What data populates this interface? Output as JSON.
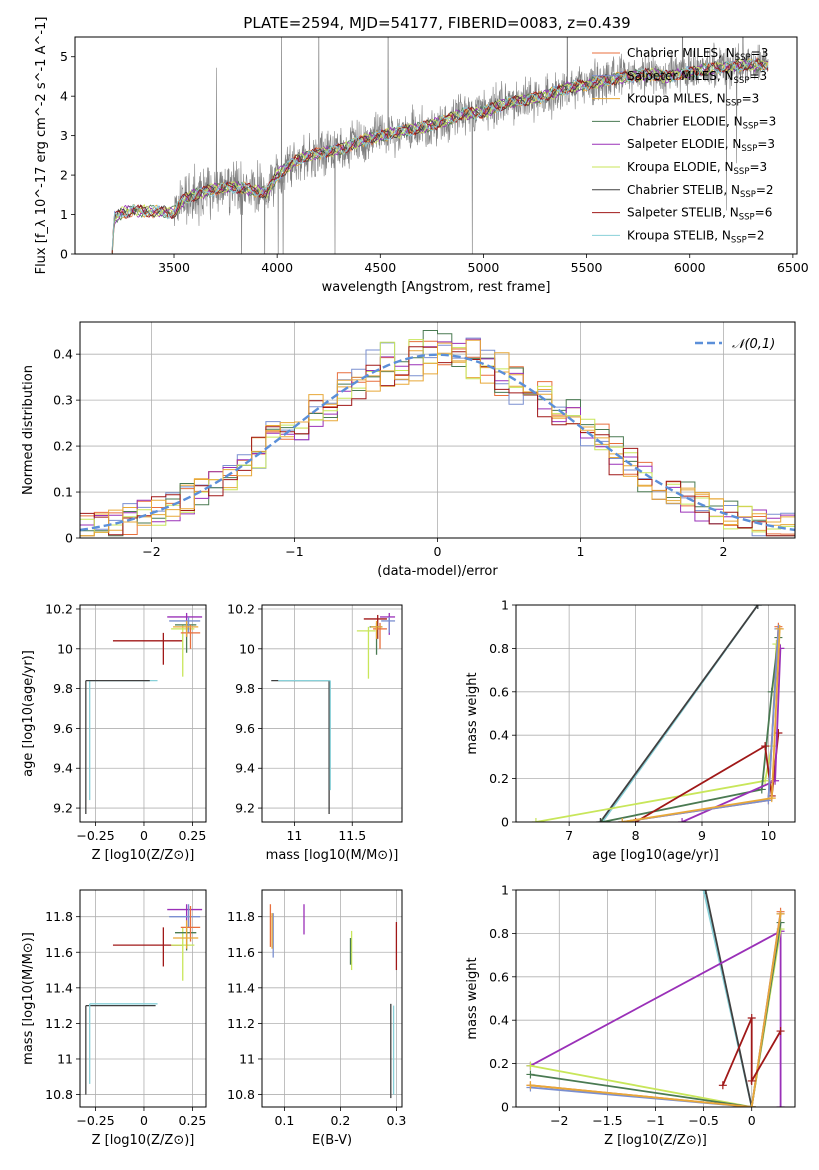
{
  "title": "PLATE=2594, MJD=54177, FIBERID=0083, z=0.439",
  "series_colors": {
    "Chabrier MILES": "#e86f3d",
    "Salpeter MILES": "#7a8fd0",
    "Kroupa MILES": "#e8a838",
    "Chabrier ELODIE": "#4a7a52",
    "Salpeter ELODIE": "#9a30b8",
    "Kroupa ELODIE": "#c8e65a",
    "Chabrier STELIB": "#404040",
    "Salpeter STELIB": "#a01818",
    "Kroupa STELIB": "#88d0d8",
    "data_flux": "#808080",
    "normal_curve": "#5b8fd9"
  },
  "chart_data": [
    {
      "id": "spectrum",
      "type": "line",
      "title": "PLATE=2594, MJD=54177, FIBERID=0083, z=0.439",
      "xlabel": "wavelength [Angstrom, rest frame]",
      "ylabel": "Flux [f_λ 10^-17 erg cm^-2 s^-1 A^-1]",
      "xlim": [
        3020,
        6520
      ],
      "ylim": [
        0,
        5.5
      ],
      "xticks": [
        3500,
        4000,
        4500,
        5000,
        5500,
        6000,
        6500
      ],
      "yticks": [
        0,
        1,
        2,
        3,
        4,
        5
      ],
      "legend": "right",
      "legend_entries": [
        "Chabrier MILES, N_SSP=3",
        "Salpeter MILES, N_SSP=3",
        "Kroupa MILES, N_SSP=3",
        "Chabrier ELODIE, N_SSP=3",
        "Salpeter ELODIE, N_SSP=3",
        "Kroupa ELODIE, N_SSP=3",
        "Chabrier STELIB, N_SSP=2",
        "Salpeter STELIB, N_SSP=6",
        "Kroupa STELIB, N_SSP=2"
      ],
      "model_curve": {
        "x": [
          3200,
          3210,
          3250,
          3300,
          3400,
          3500,
          3550,
          3600,
          3700,
          3800,
          3900,
          3950,
          4000,
          4100,
          4200,
          4300,
          4400,
          4500,
          4600,
          4700,
          4800,
          4900,
          5000,
          5100,
          5200,
          5300,
          5400,
          5500,
          5600,
          5700,
          5800,
          5900,
          6000,
          6100,
          6200,
          6300,
          6380
        ],
        "y": [
          0.0,
          0.9,
          1.05,
          1.1,
          1.08,
          1.05,
          1.4,
          1.5,
          1.65,
          1.7,
          1.6,
          1.55,
          2.0,
          2.4,
          2.55,
          2.65,
          2.85,
          3.0,
          3.1,
          3.2,
          3.35,
          3.55,
          3.6,
          3.8,
          3.9,
          4.0,
          4.2,
          4.3,
          4.4,
          4.5,
          4.55,
          4.5,
          4.6,
          4.7,
          4.75,
          4.8,
          4.8
        ]
      }
    },
    {
      "id": "residuals",
      "type": "line",
      "xlabel": "(data-model)/error",
      "ylabel": "Normed distribution",
      "xlim": [
        -2.5,
        2.5
      ],
      "ylim": [
        0,
        0.47
      ],
      "xticks": [
        -2,
        -1,
        0,
        1,
        2
      ],
      "yticks": [
        0.0,
        0.1,
        0.2,
        0.3,
        0.4
      ],
      "grid": true,
      "legend": "top-right",
      "legend_entries": [
        "𝒩(0,1)"
      ],
      "normal": {
        "mean": 0,
        "sigma": 1
      }
    },
    {
      "id": "age-vs-z",
      "type": "line",
      "xlabel": "Z [log10(Z/Z⊙)]",
      "ylabel": "age [log10(age/yr)]",
      "xlim": [
        -0.33,
        0.32
      ],
      "ylim": [
        9.13,
        10.22
      ],
      "xticks": [
        -0.25,
        0.0,
        0.25
      ],
      "yticks": [
        9.2,
        9.4,
        9.6,
        9.8,
        10.0,
        10.2
      ],
      "grid": true,
      "points": [
        {
          "series": "Kroupa STELIB",
          "x": -0.28,
          "y": 9.84,
          "xerr": [
            0,
            0.35
          ],
          "yerr": [
            0.6,
            0
          ]
        },
        {
          "series": "Chabrier STELIB",
          "x": -0.3,
          "y": 9.84,
          "xerr": [
            0,
            0.33
          ],
          "yerr": [
            0.67,
            0
          ]
        },
        {
          "series": "Salpeter STELIB",
          "x": 0.1,
          "y": 10.04,
          "xerr": [
            0.26,
            0.1
          ],
          "yerr": [
            0.12,
            0.04
          ]
        },
        {
          "series": "Salpeter ELODIE",
          "x": 0.22,
          "y": 10.16,
          "xerr": [
            0.1,
            0.08
          ],
          "yerr": [
            0.1,
            0.02
          ]
        },
        {
          "series": "Kroupa ELODIE",
          "x": 0.2,
          "y": 10.1,
          "xerr": [
            0.06,
            0.06
          ],
          "yerr": [
            0.24,
            0.02
          ]
        },
        {
          "series": "Chabrier ELODIE",
          "x": 0.22,
          "y": 10.12,
          "xerr": [
            0.06,
            0.05
          ],
          "yerr": [
            0.14,
            0.02
          ]
        },
        {
          "series": "Salpeter MILES",
          "x": 0.23,
          "y": 10.14,
          "xerr": [
            0.1,
            0.06
          ],
          "yerr": [
            0.06,
            0.02
          ]
        },
        {
          "series": "Chabrier MILES",
          "x": 0.24,
          "y": 10.08,
          "xerr": [
            0.05,
            0.05
          ],
          "yerr": [
            0.08,
            0.04
          ]
        },
        {
          "series": "Kroupa MILES",
          "x": 0.22,
          "y": 10.11,
          "xerr": [
            0.07,
            0.06
          ],
          "yerr": [
            0.05,
            0.03
          ]
        }
      ]
    },
    {
      "id": "age-vs-mass",
      "type": "line",
      "xlabel": "mass [log10(M/M⊙)]",
      "ylabel": "",
      "xlim": [
        10.72,
        11.93
      ],
      "ylim": [
        9.13,
        10.22
      ],
      "xticks": [
        11.0,
        11.5
      ],
      "yticks": [
        9.2,
        9.4,
        9.6,
        9.8,
        10.0,
        10.2
      ],
      "grid": true,
      "points": [
        {
          "series": "Chabrier STELIB",
          "x": 11.3,
          "y": 9.84,
          "xerr": [
            0.5,
            0
          ],
          "yerr": [
            0.67,
            0
          ]
        },
        {
          "series": "Kroupa STELIB",
          "x": 11.31,
          "y": 9.84,
          "xerr": [
            0.45,
            0
          ],
          "yerr": [
            0.55,
            0
          ]
        },
        {
          "series": "Salpeter STELIB",
          "x": 11.72,
          "y": 10.15,
          "xerr": [
            0.12,
            0.08
          ],
          "yerr": [
            0.1,
            0.02
          ]
        },
        {
          "series": "Salpeter ELODIE",
          "x": 11.82,
          "y": 10.16,
          "xerr": [
            0.08,
            0.05
          ],
          "yerr": [
            0.09,
            0.02
          ]
        },
        {
          "series": "Kroupa ELODIE",
          "x": 11.64,
          "y": 10.09,
          "xerr": [
            0.1,
            0.06
          ],
          "yerr": [
            0.24,
            0.02
          ]
        },
        {
          "series": "Chabrier ELODIE",
          "x": 11.71,
          "y": 10.11,
          "xerr": [
            0.06,
            0.05
          ],
          "yerr": [
            0.14,
            0.02
          ]
        },
        {
          "series": "Salpeter MILES",
          "x": 11.82,
          "y": 10.14,
          "xerr": [
            0.07,
            0.05
          ],
          "yerr": [
            0.06,
            0.02
          ]
        },
        {
          "series": "Chabrier MILES",
          "x": 11.74,
          "y": 10.1,
          "xerr": [
            0.06,
            0.06
          ],
          "yerr": [
            0.1,
            0.03
          ]
        },
        {
          "series": "Kroupa MILES",
          "x": 11.71,
          "y": 10.11,
          "xerr": [
            0.05,
            0.05
          ],
          "yerr": [
            0.06,
            0.03
          ]
        }
      ]
    },
    {
      "id": "weight-vs-age",
      "type": "line",
      "xlabel": "age [log10(age/yr)]",
      "ylabel": "mass weight",
      "xlim": [
        6.2,
        10.4
      ],
      "ylim": [
        0,
        1
      ],
      "xticks": [
        7,
        8,
        9,
        10
      ],
      "yticks": [
        0.0,
        0.2,
        0.4,
        0.6,
        0.8,
        1.0
      ],
      "grid": true,
      "series": [
        {
          "series": "Kroupa STELIB",
          "x": [
            7.5,
            9.84
          ],
          "y": [
            0.0,
            1.0
          ]
        },
        {
          "series": "Chabrier STELIB",
          "x": [
            7.47,
            9.84
          ],
          "y": [
            0.0,
            1.0
          ]
        },
        {
          "series": "Kroupa ELODIE",
          "x": [
            6.5,
            9.95,
            10.05,
            10.12
          ],
          "y": [
            0.0,
            0.19,
            0.35,
            0.82
          ]
        },
        {
          "series": "Chabrier ELODIE",
          "x": [
            7.5,
            9.9,
            10.05,
            10.15
          ],
          "y": [
            0.0,
            0.15,
            0.6,
            0.85
          ]
        },
        {
          "series": "Salpeter STELIB",
          "x": [
            8.0,
            9.95,
            10.05,
            10.15
          ],
          "y": [
            0.0,
            0.35,
            0.12,
            0.41
          ]
        },
        {
          "series": "Salpeter ELODIE",
          "x": [
            8.7,
            10.1,
            10.18
          ],
          "y": [
            0.0,
            0.19,
            0.8
          ]
        },
        {
          "series": "Chabrier MILES",
          "x": [
            7.8,
            10.0,
            10.15
          ],
          "y": [
            0.0,
            0.1,
            0.9
          ]
        },
        {
          "series": "Salpeter MILES",
          "x": [
            7.8,
            10.0,
            10.15
          ],
          "y": [
            0.0,
            0.1,
            0.89
          ]
        },
        {
          "series": "Kroupa MILES",
          "x": [
            7.8,
            10.05,
            10.17
          ],
          "y": [
            0.0,
            0.11,
            0.89
          ]
        }
      ]
    },
    {
      "id": "mass-vs-z",
      "type": "line",
      "xlabel": "Z [log10(Z/Z⊙)]",
      "ylabel": "mass [log10(M/M⊙)]",
      "xlim": [
        -0.33,
        0.32
      ],
      "ylim": [
        10.73,
        11.95
      ],
      "xticks": [
        -0.25,
        0.0,
        0.25
      ],
      "yticks": [
        10.8,
        11.0,
        11.2,
        11.4,
        11.6,
        11.8
      ],
      "grid": true,
      "points": [
        {
          "series": "Chabrier STELIB",
          "x": -0.3,
          "y": 11.3,
          "xerr": [
            0,
            0.36
          ],
          "yerr": [
            0.5,
            0
          ]
        },
        {
          "series": "Kroupa STELIB",
          "x": -0.28,
          "y": 11.31,
          "xerr": [
            0,
            0.35
          ],
          "yerr": [
            0.45,
            0
          ]
        },
        {
          "series": "Salpeter STELIB",
          "x": 0.1,
          "y": 11.64,
          "xerr": [
            0.26,
            0.1
          ],
          "yerr": [
            0.12,
            0.1
          ]
        },
        {
          "series": "Salpeter ELODIE",
          "x": 0.22,
          "y": 11.84,
          "xerr": [
            0.1,
            0.08
          ],
          "yerr": [
            0.08,
            0.03
          ]
        },
        {
          "series": "Kroupa ELODIE",
          "x": 0.2,
          "y": 11.64,
          "xerr": [
            0.06,
            0.06
          ],
          "yerr": [
            0.2,
            0.1
          ]
        },
        {
          "series": "Chabrier ELODIE",
          "x": 0.22,
          "y": 11.71,
          "xerr": [
            0.06,
            0.05
          ],
          "yerr": [
            0.1,
            0.05
          ]
        },
        {
          "series": "Salpeter MILES",
          "x": 0.23,
          "y": 11.8,
          "xerr": [
            0.1,
            0.06
          ],
          "yerr": [
            0.06,
            0.07
          ]
        },
        {
          "series": "Chabrier MILES",
          "x": 0.24,
          "y": 11.74,
          "xerr": [
            0.05,
            0.05
          ],
          "yerr": [
            0.08,
            0.12
          ]
        },
        {
          "series": "Kroupa MILES",
          "x": 0.22,
          "y": 11.68,
          "xerr": [
            0.07,
            0.06
          ],
          "yerr": [
            0.06,
            0.1
          ]
        }
      ]
    },
    {
      "id": "mass-vs-ebv",
      "type": "line",
      "xlabel": "E(B-V)",
      "ylabel": "",
      "xlim": [
        0.06,
        0.31
      ],
      "ylim": [
        10.73,
        11.95
      ],
      "xticks": [
        0.1,
        0.2,
        0.3
      ],
      "yticks": [
        10.8,
        11.0,
        11.2,
        11.4,
        11.6,
        11.8
      ],
      "grid": true,
      "points": [
        {
          "series": "Salpeter MILES",
          "x": 0.08,
          "y": 11.7,
          "yerr": [
            0.13,
            0.12
          ]
        },
        {
          "series": "Chabrier MILES",
          "x": 0.075,
          "y": 11.75,
          "yerr": [
            0.12,
            0.12
          ]
        },
        {
          "series": "Kroupa MILES",
          "x": 0.078,
          "y": 11.72,
          "yerr": [
            0.1,
            0.1
          ]
        },
        {
          "series": "Salpeter ELODIE",
          "x": 0.135,
          "y": 11.78,
          "yerr": [
            0.08,
            0.09
          ]
        },
        {
          "series": "Kroupa ELODIE",
          "x": 0.22,
          "y": 11.65,
          "yerr": [
            0.15,
            0.07
          ]
        },
        {
          "series": "Chabrier ELODIE",
          "x": 0.218,
          "y": 11.63,
          "yerr": [
            0.1,
            0.05
          ]
        },
        {
          "series": "Salpeter STELIB",
          "x": 0.3,
          "y": 11.64,
          "yerr": [
            0.14,
            0.13
          ]
        },
        {
          "series": "Chabrier STELIB",
          "x": 0.29,
          "y": 11.05,
          "yerr": [
            0.27,
            0.26
          ]
        },
        {
          "series": "Kroupa STELIB",
          "x": 0.295,
          "y": 11.05,
          "yerr": [
            0.25,
            0.25
          ]
        }
      ]
    },
    {
      "id": "weight-vs-z",
      "type": "line",
      "xlabel": "Z [log10(Z/Z⊙)]",
      "ylabel": "mass weight",
      "xlim": [
        -2.45,
        0.45
      ],
      "ylim": [
        0,
        1
      ],
      "xticks": [
        -2.0,
        -1.5,
        -1.0,
        -0.5,
        0.0
      ],
      "yticks": [
        0.0,
        0.2,
        0.4,
        0.6,
        0.8,
        1.0
      ],
      "grid": true,
      "series": [
        {
          "series": "Kroupa STELIB",
          "x": [
            -0.5,
            0.0
          ],
          "y": [
            1.0,
            0.0
          ]
        },
        {
          "series": "Chabrier STELIB",
          "x": [
            -0.48,
            0.0
          ],
          "y": [
            1.0,
            0.0
          ]
        },
        {
          "series": "Salpeter ELODIE",
          "x": [
            -2.3,
            0.3,
            0.3
          ],
          "y": [
            0.19,
            0.81,
            0.0
          ]
        },
        {
          "series": "Kroupa ELODIE",
          "x": [
            -2.3,
            0.0,
            0.3
          ],
          "y": [
            0.19,
            0.0,
            0.82
          ]
        },
        {
          "series": "Chabrier ELODIE",
          "x": [
            -2.3,
            0.0,
            0.3
          ],
          "y": [
            0.15,
            0.0,
            0.85
          ]
        },
        {
          "series": "Chabrier MILES",
          "x": [
            -2.3,
            0.0,
            0.3
          ],
          "y": [
            0.1,
            0.0,
            0.9
          ]
        },
        {
          "series": "Salpeter MILES",
          "x": [
            -2.3,
            0.0,
            0.3
          ],
          "y": [
            0.09,
            0.0,
            0.89
          ]
        },
        {
          "series": "Kroupa MILES",
          "x": [
            -2.3,
            0.0,
            0.3
          ],
          "y": [
            0.1,
            0.0,
            0.89
          ]
        },
        {
          "series": "Salpeter STELIB",
          "x": [
            -0.3,
            0.0,
            0.0,
            0.3
          ],
          "y": [
            0.1,
            0.41,
            0.12,
            0.35
          ]
        }
      ]
    }
  ]
}
